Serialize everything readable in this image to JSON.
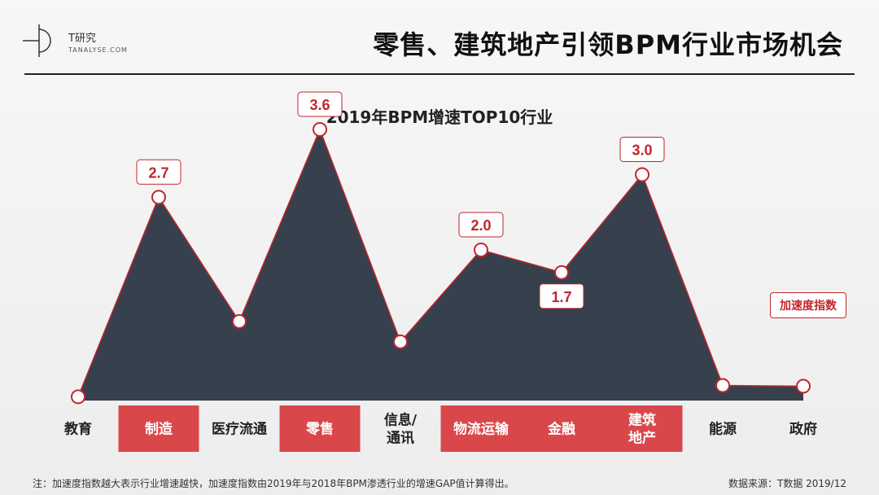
{
  "header": {
    "logo_name": "T研究",
    "logo_sub": "TANALYSE.COM",
    "title": "零售、建筑地产引领BPM行业市场机会"
  },
  "chart_data": {
    "type": "area",
    "title": "2019年BPM增速TOP10行业",
    "categories": [
      "教育",
      "制造",
      "医疗流通",
      "零售",
      "信息/\n通讯",
      "物流运输",
      "金融",
      "建筑\n地产",
      "能源",
      "政府"
    ],
    "highlighted": [
      false,
      true,
      false,
      true,
      false,
      true,
      true,
      true,
      false,
      false
    ],
    "series": [
      {
        "name": "加速度指数",
        "values": [
          0.05,
          2.7,
          1.05,
          3.6,
          0.78,
          2.0,
          1.7,
          3.0,
          0.2,
          0.19
        ],
        "labels": [
          "",
          "2.7",
          "",
          "3.6",
          "",
          "2.0",
          "1.7",
          "3.0",
          "",
          ""
        ]
      }
    ],
    "colors": {
      "area_fill": "#37404d",
      "line": "#c0262d",
      "highlight_band": "#d9474b",
      "highlight_text": "#ffffff",
      "label_text": "#c0262d"
    }
  },
  "footer": {
    "note": "注：加速度指数越大表示行业增速越快，加速度指数由2019年与2018年BPM渗透行业的增速GAP值计算得出。",
    "source": "数据来源：T数据 2019/12"
  }
}
